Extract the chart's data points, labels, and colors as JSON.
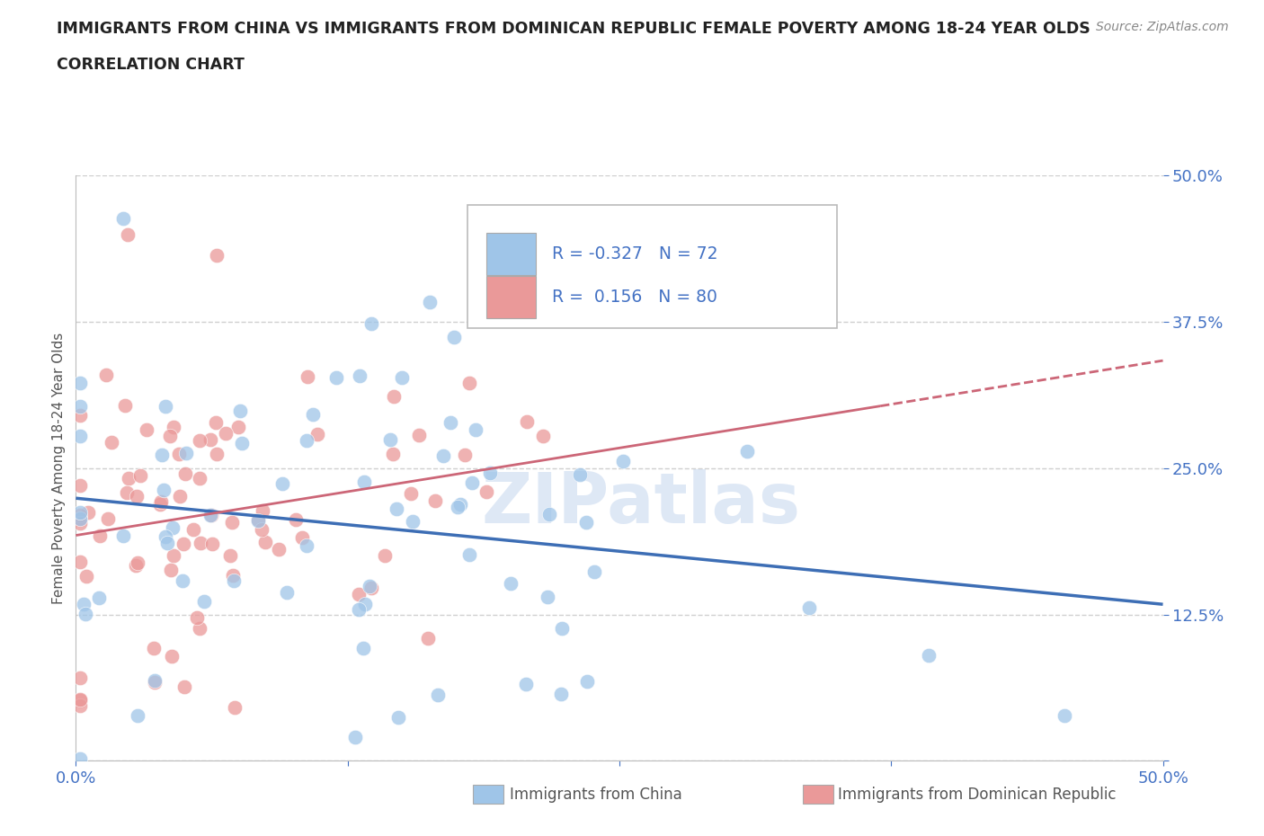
{
  "title_line1": "IMMIGRANTS FROM CHINA VS IMMIGRANTS FROM DOMINICAN REPUBLIC FEMALE POVERTY AMONG 18-24 YEAR OLDS",
  "title_line2": "CORRELATION CHART",
  "source": "Source: ZipAtlas.com",
  "ylabel": "Female Poverty Among 18-24 Year Olds",
  "legend_label_china": "Immigrants from China",
  "legend_label_dr": "Immigrants from Dominican Republic",
  "r_china": -0.327,
  "n_china": 72,
  "r_dr": 0.156,
  "n_dr": 80,
  "color_china": "#9fc5e8",
  "color_dr": "#ea9999",
  "color_china_line": "#3d6eb5",
  "color_dr_line": "#cc6677",
  "color_text_blue": "#4472c4",
  "color_grid": "#d0d0d0",
  "color_spine": "#bbbbbb",
  "background": "#ffffff",
  "watermark": "ZIPatlas",
  "xlim": [
    0.0,
    0.5
  ],
  "ylim": [
    0.0,
    0.5
  ],
  "ytick_positions": [
    0.0,
    0.125,
    0.25,
    0.375,
    0.5
  ],
  "ytick_labels": [
    "",
    "12.5%",
    "25.0%",
    "37.5%",
    "50.0%"
  ],
  "xtick_positions": [
    0.0,
    0.125,
    0.25,
    0.375,
    0.5
  ],
  "xtick_labels": [
    "0.0%",
    "",
    "",
    "",
    "50.0%"
  ]
}
